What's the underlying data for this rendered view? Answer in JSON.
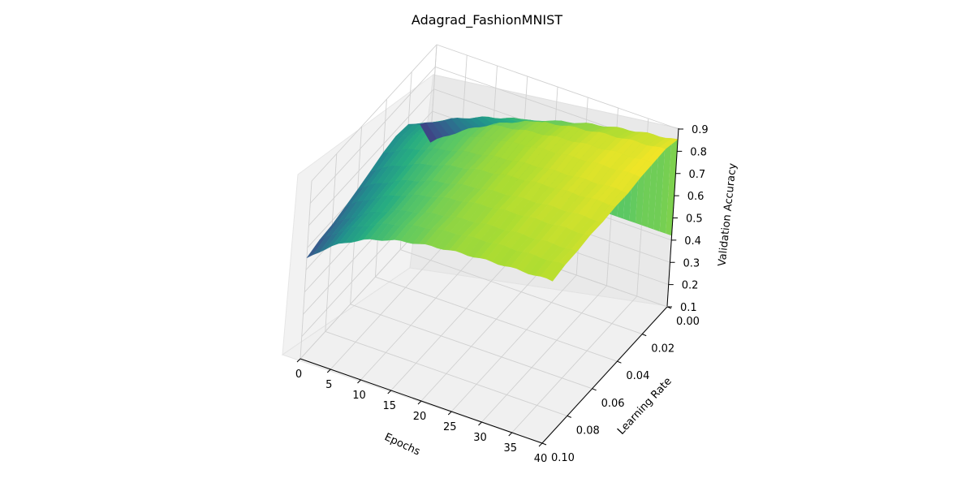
{
  "chart_data": {
    "type": "surface3d",
    "title": "Adagrad_FashionMNIST",
    "xlabel": "Epochs",
    "ylabel": "Learning Rate",
    "zlabel": "Validation Accuracy",
    "x_ticks": [
      "0",
      "5",
      "10",
      "15",
      "20",
      "25",
      "30",
      "35",
      "40"
    ],
    "y_ticks": [
      "0.00",
      "0.02",
      "0.04",
      "0.06",
      "0.08",
      "0.10"
    ],
    "z_ticks": [
      "0.1",
      "0.2",
      "0.3",
      "0.4",
      "0.5",
      "0.6",
      "0.7",
      "0.8",
      "0.9"
    ],
    "xlim": [
      0,
      40
    ],
    "ylim": [
      0,
      0.1
    ],
    "zlim": [
      0.1,
      0.9
    ],
    "colormap": "viridis",
    "surface": {
      "lr_values": [
        0.0,
        0.01,
        0.02,
        0.03,
        0.04,
        0.05,
        0.06,
        0.07,
        0.08,
        0.09,
        0.1
      ],
      "accuracy_at_epoch_0": [
        0.46,
        0.6,
        0.66,
        0.67,
        0.66,
        0.64,
        0.62,
        0.6,
        0.58,
        0.57,
        0.55
      ],
      "accuracy_at_epoch_40": [
        0.85,
        0.87,
        0.87,
        0.87,
        0.86,
        0.86,
        0.85,
        0.85,
        0.84,
        0.84,
        0.83
      ],
      "accuracy_at_lr_0": [
        0.46,
        0.58,
        0.66,
        0.72,
        0.76,
        0.79,
        0.81,
        0.83,
        0.84,
        0.85
      ],
      "epochs_sampled": [
        0,
        4,
        8,
        12,
        16,
        20,
        25,
        30,
        35,
        40
      ]
    },
    "grid": true
  }
}
